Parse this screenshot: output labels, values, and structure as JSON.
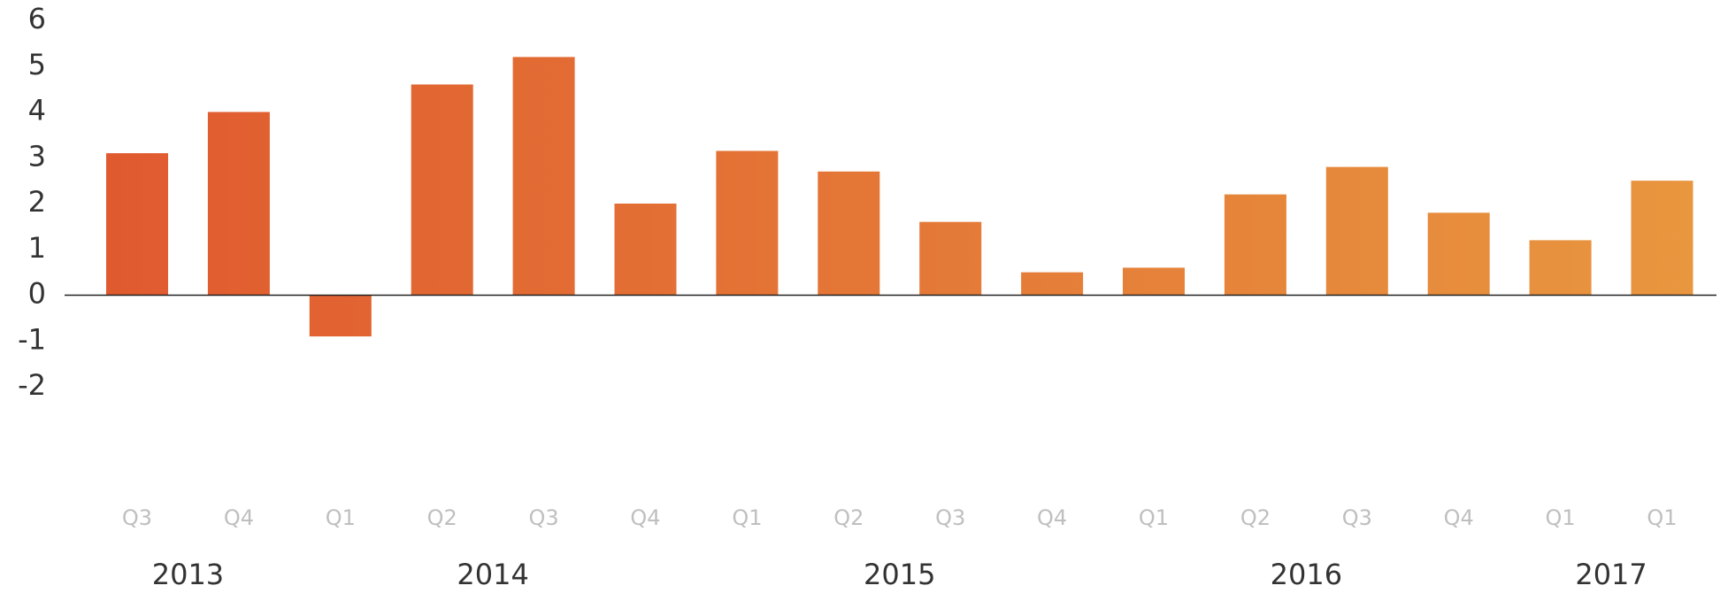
{
  "chart_data": {
    "type": "bar",
    "title": "",
    "xlabel": "",
    "ylabel": "",
    "ylim": [
      -2,
      6
    ],
    "yticks": [
      6,
      5,
      4,
      3,
      2,
      1,
      0,
      -1,
      -2
    ],
    "categories": [
      "Q3",
      "Q4",
      "Q1",
      "Q2",
      "Q3",
      "Q4",
      "Q1",
      "Q2",
      "Q3",
      "Q4",
      "Q1",
      "Q2",
      "Q3",
      "Q4",
      "Q1",
      "Q1"
    ],
    "values": [
      3.1,
      4.0,
      -0.9,
      4.6,
      5.2,
      2.0,
      3.15,
      2.7,
      1.6,
      0.5,
      0.6,
      2.2,
      2.8,
      1.8,
      1.2,
      2.5
    ],
    "year_labels": [
      {
        "label": "2013",
        "center_index": 0.5
      },
      {
        "label": "2014",
        "center_index": 3.5
      },
      {
        "label": "2015",
        "center_index": 7.5
      },
      {
        "label": "2016",
        "center_index": 11.5
      },
      {
        "label": "2017",
        "center_index": 14.5
      }
    ],
    "grid": false,
    "legend": "none",
    "colors": {
      "bar_start": "#e0562e",
      "bar_end": "#e8973f",
      "axis_text": "#333333",
      "quarter_text": "#bfbfbf",
      "zero_line": "#222222"
    }
  }
}
